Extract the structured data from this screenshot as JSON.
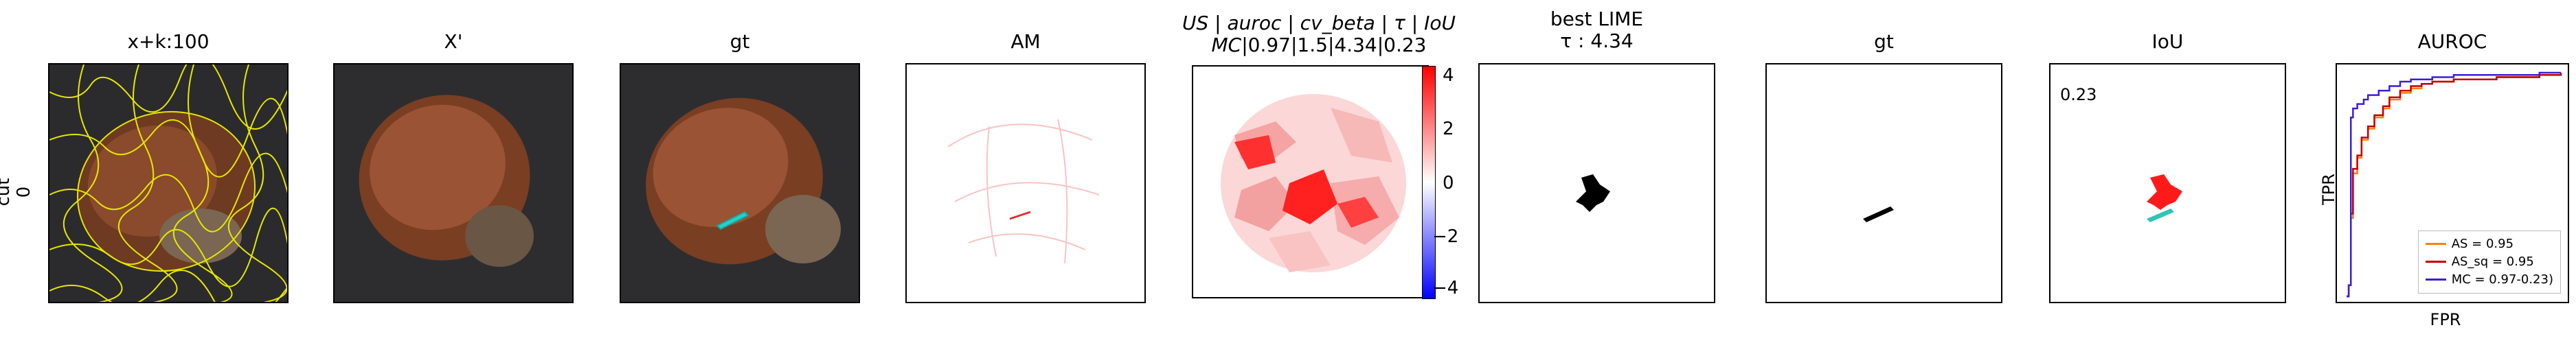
{
  "row_label": [
    "cut",
    "0"
  ],
  "panels": [
    {
      "title": "x+k:100"
    },
    {
      "title": "X'"
    },
    {
      "title": "gt"
    },
    {
      "title": "AM"
    },
    {
      "title_line1": "US | auroc | cv_beta | τ | IoU",
      "title_line2": "MC|0.97|1.5|4.34|0.23"
    },
    {
      "title_line1": "best LIME",
      "title_line2": "τ : 4.34"
    },
    {
      "title": "gt"
    },
    {
      "title": "IoU",
      "annotation": "0.23"
    },
    {
      "title": "AUROC"
    }
  ],
  "colorbar": {
    "ticks": [
      "4",
      "2",
      "0",
      "−2",
      "−4"
    ],
    "range": [
      -4.3,
      4.3
    ],
    "colors": {
      "high": "#ff0000",
      "mid": "#ffffff",
      "low": "#0000ff"
    }
  },
  "chart_data": {
    "type": "line",
    "title": "AUROC",
    "xlabel": "FPR",
    "ylabel": "TPR",
    "xlim": [
      0,
      1
    ],
    "ylim": [
      0,
      1
    ],
    "legend_position": "bottom-right",
    "series": [
      {
        "name": "AS = 0.95",
        "color": "#ff7f0e",
        "x": [
          0,
          0.01,
          0.02,
          0.03,
          0.05,
          0.07,
          0.1,
          0.13,
          0.17,
          0.2,
          0.25,
          0.3,
          0.35,
          0.4,
          0.5,
          0.6,
          0.7,
          0.8,
          0.9,
          1.0
        ],
        "y": [
          0,
          0.05,
          0.35,
          0.55,
          0.62,
          0.7,
          0.75,
          0.8,
          0.84,
          0.88,
          0.91,
          0.93,
          0.95,
          0.96,
          0.97,
          0.97,
          0.98,
          0.98,
          0.99,
          1.0
        ]
      },
      {
        "name": "AS_sq = 0.95",
        "color": "#c00000",
        "x": [
          0,
          0.01,
          0.02,
          0.03,
          0.05,
          0.07,
          0.1,
          0.13,
          0.17,
          0.2,
          0.25,
          0.3,
          0.35,
          0.4,
          0.5,
          0.6,
          0.7,
          0.8,
          0.9,
          1.0
        ],
        "y": [
          0,
          0.05,
          0.37,
          0.57,
          0.63,
          0.71,
          0.76,
          0.81,
          0.85,
          0.89,
          0.92,
          0.94,
          0.95,
          0.96,
          0.97,
          0.97,
          0.98,
          0.98,
          0.99,
          1.0
        ]
      },
      {
        "name": "MC = 0.97-0.23)",
        "color": "#3a1fd6",
        "x": [
          0,
          0.01,
          0.02,
          0.03,
          0.05,
          0.08,
          0.1,
          0.15,
          0.2,
          0.25,
          0.3,
          0.4,
          0.5,
          0.6,
          0.7,
          0.8,
          0.9,
          1.0
        ],
        "y": [
          0,
          0.05,
          0.8,
          0.84,
          0.86,
          0.88,
          0.9,
          0.92,
          0.94,
          0.96,
          0.97,
          0.98,
          0.99,
          0.99,
          0.99,
          0.99,
          1.0,
          1.0
        ]
      }
    ]
  }
}
